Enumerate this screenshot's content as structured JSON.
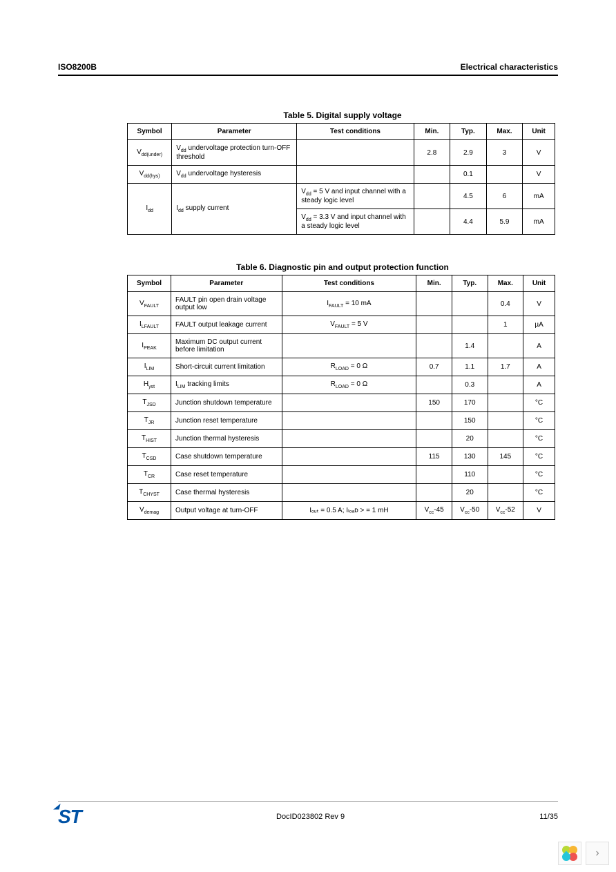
{
  "header": {
    "left": "ISO8200B",
    "right": "Electrical characteristics"
  },
  "table5": {
    "caption": "Table 5. Digital supply voltage",
    "cols": {
      "symbol": "Symbol",
      "param": "Parameter",
      "cond": "Test conditions",
      "min": "Min.",
      "typ": "Typ.",
      "max": "Max.",
      "unit": "Unit"
    },
    "r1": {
      "sym_base": "V",
      "sym_sub": "dd(under)",
      "param_pre": "V",
      "param_sub": "dd",
      "param_rest": " undervoltage protection turn-OFF threshold",
      "cond": "",
      "min": "2.8",
      "typ": "2.9",
      "max": "3",
      "unit": "V"
    },
    "r2": {
      "sym_base": "V",
      "sym_sub": "dd(hys)",
      "param_pre": "V",
      "param_sub": "dd",
      "param_rest": " undervoltage hysteresis",
      "cond": "",
      "min": "",
      "typ": "0.1",
      "max": "",
      "unit": "V"
    },
    "r3": {
      "sym_base": "I",
      "sym_sub": "dd",
      "param_pre": "I",
      "param_sub": "dd",
      "param_rest": " supply current",
      "cond_a_pre": "V",
      "cond_a_sub": "dd",
      "cond_a_rest": " = 5 V and input channel with a steady logic level",
      "min_a": "",
      "typ_a": "4.5",
      "max_a": "6",
      "unit_a": "mA",
      "cond_b_pre": "V",
      "cond_b_sub": "dd",
      "cond_b_rest": " = 3.3 V and input channel with a steady logic level",
      "min_b": "",
      "typ_b": "4.4",
      "max_b": "5.9",
      "unit_b": "mA"
    }
  },
  "table6": {
    "caption": "Table 6. Diagnostic pin and output protection function",
    "cols": {
      "symbol": "Symbol",
      "param": "Parameter",
      "cond": "Test conditions",
      "min": "Min.",
      "typ": "Typ.",
      "max": "Max.",
      "unit": "Unit"
    },
    "rows": {
      "r1": {
        "sb": "V",
        "ss": "FAULT",
        "param": "FAULT pin open drain voltage output low",
        "cpre": "I",
        "csub": "FAULT",
        "crest": " = 10 mA",
        "min": "",
        "typ": "",
        "max": "0.4",
        "unit": "V"
      },
      "r2": {
        "sb": "I",
        "ss": "LFAULT",
        "param": "FAULT output leakage current",
        "cpre": "V",
        "csub": "FAULT",
        "crest": " = 5 V",
        "min": "",
        "typ": "",
        "max": "1",
        "unit": "µA"
      },
      "r3": {
        "sb": "I",
        "ss": "PEAK",
        "param": "Maximum DC output current before limitation",
        "cpre": "",
        "csub": "",
        "crest": "",
        "min": "",
        "typ": "1.4",
        "max": "",
        "unit": "A"
      },
      "r4": {
        "sb": "I",
        "ss": "LIM",
        "param": "Short-circuit current limitation",
        "cpre": "R",
        "csub": "LOAD",
        "crest": " = 0 Ω",
        "min": "0.7",
        "typ": "1.1",
        "max": "1.7",
        "unit": "A"
      },
      "r5": {
        "sb": "H",
        "ss": "yst",
        "param_pre": "I",
        "param_sub": "LIM",
        "param_rest": " tracking limits",
        "cpre": "R",
        "csub": "LOAD",
        "crest": " = 0 Ω",
        "min": "",
        "typ": "0.3",
        "max": "",
        "unit": "A"
      },
      "r6": {
        "sb": "T",
        "ss": "JSD",
        "param": "Junction shutdown temperature",
        "cpre": "",
        "csub": "",
        "crest": "",
        "min": "150",
        "typ": "170",
        "max": "",
        "unit": "°C"
      },
      "r7": {
        "sb": "T",
        "ss": "JR",
        "param": "Junction reset temperature",
        "cpre": "",
        "csub": "",
        "crest": "",
        "min": "",
        "typ": "150",
        "max": "",
        "unit": "°C"
      },
      "r8": {
        "sb": "T",
        "ss": "HIST",
        "param": "Junction thermal hysteresis",
        "cpre": "",
        "csub": "",
        "crest": "",
        "min": "",
        "typ": "20",
        "max": "",
        "unit": "°C"
      },
      "r9": {
        "sb": "T",
        "ss": "CSD",
        "param": "Case shutdown temperature",
        "cpre": "",
        "csub": "",
        "crest": "",
        "min": "115",
        "typ": "130",
        "max": "145",
        "unit": "°C"
      },
      "r10": {
        "sb": "T",
        "ss": "CR",
        "param": "Case reset temperature",
        "cpre": "",
        "csub": "",
        "crest": "",
        "min": "",
        "typ": "110",
        "max": "",
        "unit": "°C"
      },
      "r11": {
        "sb": "T",
        "ss": "CHYST",
        "param": "Case thermal hysteresis",
        "cpre": "",
        "csub": "",
        "crest": "",
        "min": "",
        "typ": "20",
        "max": "",
        "unit": "°C"
      },
      "r12": {
        "sb": "V",
        "ss": "demag",
        "param": "Output voltage at turn-OFF",
        "cond_full": "Iₒᵤₜ = 0.5 A; Iₗₒₐᴅ > = 1 mH",
        "min_pre": "V",
        "min_sub": "cc",
        "min_rest": "-45",
        "typ_pre": "V",
        "typ_sub": "cc",
        "typ_rest": "-50",
        "max_pre": "V",
        "max_sub": "cc",
        "max_rest": "-52",
        "unit": "V"
      }
    }
  },
  "footer": {
    "logo": "ST",
    "docid": "DocID023802 Rev 9",
    "page": "11/35"
  },
  "colors": {
    "petal1": "#b8d936",
    "petal2": "#f7b733",
    "petal3": "#ef5350",
    "petal4": "#26c6da"
  }
}
